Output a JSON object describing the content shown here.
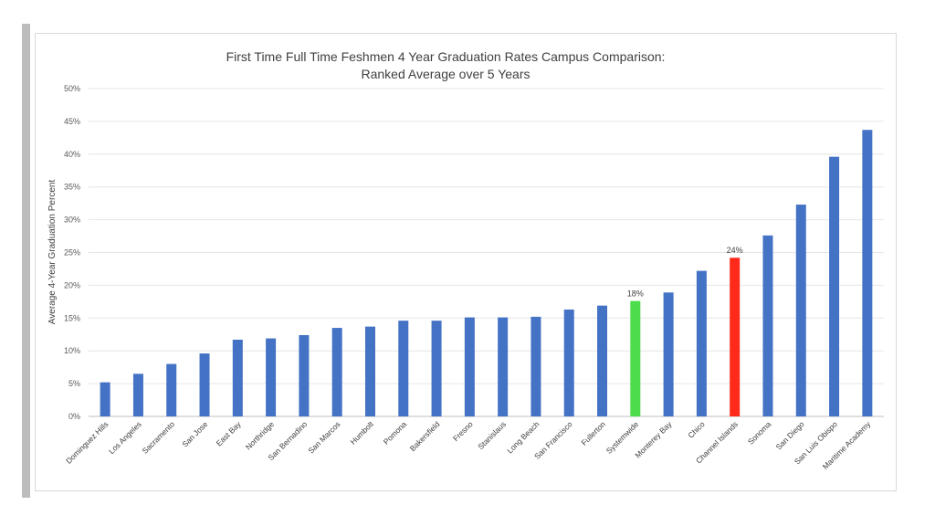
{
  "chart_data": {
    "type": "bar",
    "title_line1": "First Time Full Time Feshmen 4 Year Graduation Rates Campus Comparison:",
    "title_line2": "Ranked Average over 5 Years",
    "ylabel": "Average 4-Year Graduation Percent",
    "xlabel": "",
    "ylim": [
      0,
      50
    ],
    "yticks": [
      "0%",
      "5%",
      "10%",
      "15%",
      "20%",
      "25%",
      "30%",
      "35%",
      "40%",
      "45%",
      "50%"
    ],
    "grid": true,
    "categories": [
      "Dominguez Hills",
      "Los Angeles",
      "Sacramento",
      "San Jose",
      "East Bay",
      "Northridge",
      "San Bernadino",
      "San Marcos",
      "Humbolt",
      "Pomona",
      "Bakersfield",
      "Fresno",
      "Stanislaus",
      "Long Beach",
      "San Francisco",
      "Fullerton",
      "Systemwide",
      "Monterey Bay",
      "Chico",
      "Channel Islands",
      "Sonoma",
      "San Diego",
      "San Luis Obispo",
      "Maritime Academy"
    ],
    "values": [
      5.2,
      6.5,
      8.0,
      9.6,
      11.7,
      11.9,
      12.4,
      13.5,
      13.7,
      14.6,
      14.6,
      15.1,
      15.1,
      15.2,
      16.3,
      16.9,
      17.6,
      18.9,
      22.2,
      24.2,
      27.6,
      32.3,
      39.6,
      43.7
    ],
    "data_labels": [
      {
        "category": "Systemwide",
        "text": "18%"
      },
      {
        "category": "Channel Islands",
        "text": "24%"
      }
    ],
    "colors": {
      "default": "#4472c4",
      "Systemwide": "#4cdc4c",
      "Channel Islands": "#ff2a1a"
    }
  }
}
